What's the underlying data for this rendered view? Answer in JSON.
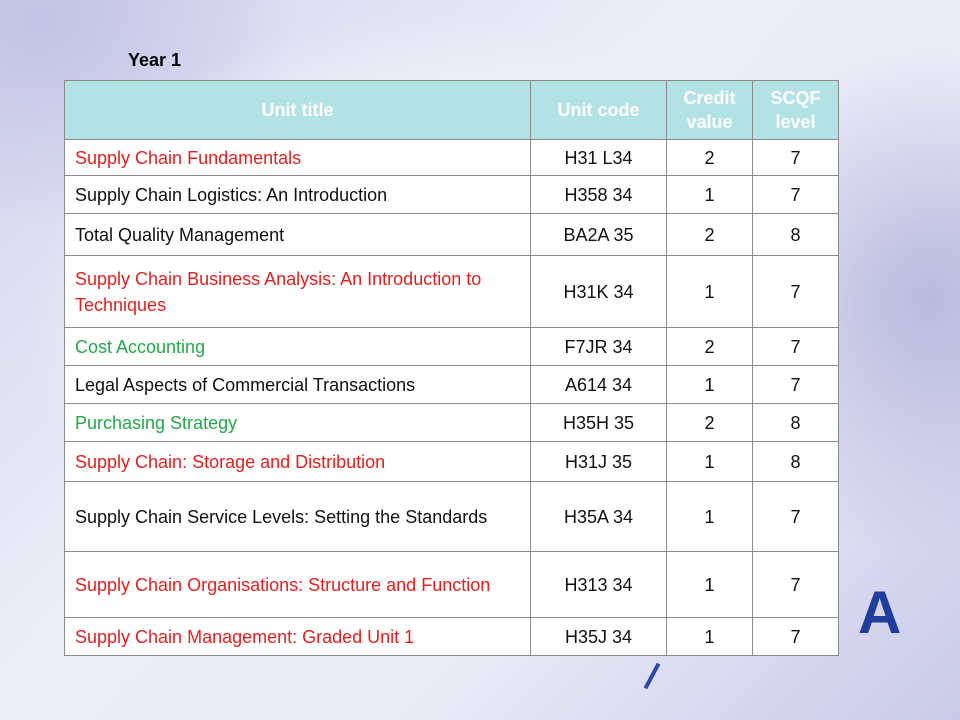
{
  "year_label": "Year 1",
  "columns": {
    "unit_title": "Unit title",
    "unit_code": "Unit code",
    "credit_value": "Credit value",
    "scqf_level": "SCQF level"
  },
  "colors": {
    "header_bg": "#b3e2e5",
    "red": "#e32020",
    "green": "#22a84a",
    "black": "#111111"
  },
  "rows": [
    {
      "title": "Supply Chain Fundamentals",
      "code": "H31 L34",
      "credit": "2",
      "level": "7",
      "color": "red"
    },
    {
      "title": "Supply Chain Logistics: An Introduction",
      "code": "H358 34",
      "credit": "1",
      "level": "7",
      "color": "black"
    },
    {
      "title": "Total Quality Management",
      "code": "BA2A 35",
      "credit": "2",
      "level": "8",
      "color": "black"
    },
    {
      "title": "Supply Chain Business Analysis: An Introduction to Techniques",
      "code": "H31K 34",
      "credit": "1",
      "level": "7",
      "color": "red"
    },
    {
      "title": "Cost Accounting",
      "code": "F7JR 34",
      "credit": "2",
      "level": "7",
      "color": "green"
    },
    {
      "title": "Legal Aspects of Commercial Transactions",
      "code": "A614 34",
      "credit": "1",
      "level": "7",
      "color": "black"
    },
    {
      "title": "Purchasing Strategy",
      "code": "H35H 35",
      "credit": "2",
      "level": "8",
      "color": "green"
    },
    {
      "title": "Supply Chain: Storage and Distribution",
      "code": "H31J 35",
      "credit": "1",
      "level": "8",
      "color": "red"
    },
    {
      "title": "Supply Chain Service Levels: Setting the Standards",
      "code": "H35A 34",
      "credit": "1",
      "level": "7",
      "color": "black"
    },
    {
      "title": "Supply Chain Organisations: Structure and Function",
      "code": "H313 34",
      "credit": "1",
      "level": "7",
      "color": "red"
    },
    {
      "title": "Supply Chain Management: Graded Unit 1",
      "code": "H35J 34",
      "credit": "1",
      "level": "7",
      "color": "red"
    }
  ]
}
